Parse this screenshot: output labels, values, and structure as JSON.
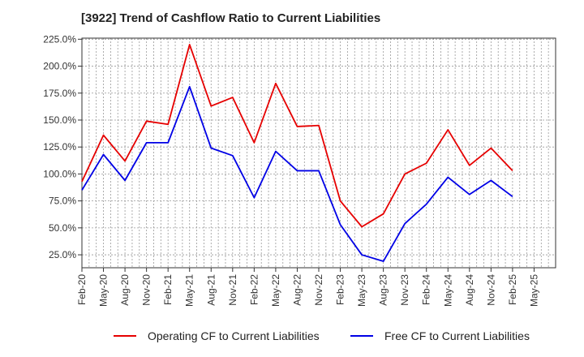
{
  "chart_data": {
    "type": "line",
    "title": "[3922]  Trend of Cashflow Ratio to Current Liabilities",
    "xlabel": "",
    "ylabel": "",
    "ylim": [
      13,
      226
    ],
    "yticks": [
      25,
      50,
      75,
      100,
      125,
      150,
      175,
      200,
      225
    ],
    "ytick_labels": [
      "25.0%",
      "50.0%",
      "75.0%",
      "100.0%",
      "125.0%",
      "150.0%",
      "175.0%",
      "200.0%",
      "225.0%"
    ],
    "x_tick_labels": [
      "Feb-20",
      "May-20",
      "Aug-20",
      "Nov-20",
      "Feb-21",
      "May-21",
      "Aug-21",
      "Nov-21",
      "Feb-22",
      "May-22",
      "Aug-22",
      "Nov-22",
      "Feb-23",
      "May-23",
      "Aug-23",
      "Nov-23",
      "Feb-24",
      "May-24",
      "Aug-24",
      "Nov-24",
      "Feb-25",
      "May-25"
    ],
    "x": [
      "Feb-20",
      "May-20",
      "Aug-20",
      "Nov-20",
      "Feb-21",
      "May-21",
      "Aug-21",
      "Nov-21",
      "Feb-22",
      "May-22",
      "Aug-22",
      "Nov-22",
      "Feb-23",
      "May-23",
      "Aug-23",
      "Nov-23",
      "Feb-24",
      "May-24",
      "Aug-24",
      "Nov-24",
      "Feb-25"
    ],
    "grid": true,
    "legend_position": "bottom",
    "series": [
      {
        "name": "Operating CF to Current Liabilities",
        "color": "#e60000",
        "values": [
          93,
          136,
          112,
          149,
          146,
          220,
          163,
          171,
          129,
          184,
          144,
          145,
          75,
          51,
          63,
          100,
          110,
          141,
          108,
          124,
          103
        ]
      },
      {
        "name": "Free CF to Current Liabilities",
        "color": "#0000e6",
        "values": [
          85,
          118,
          94,
          129,
          129,
          181,
          124,
          117,
          78,
          121,
          103,
          103,
          53,
          25,
          19,
          54,
          72,
          97,
          81,
          94,
          79
        ]
      }
    ]
  }
}
